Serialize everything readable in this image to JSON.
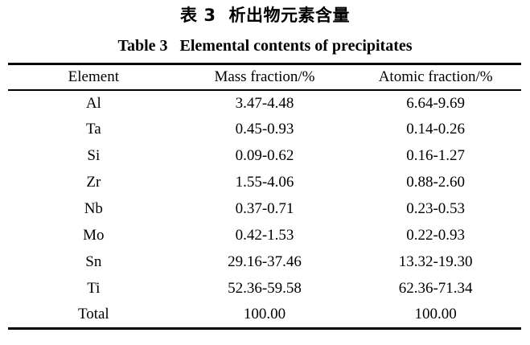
{
  "titles": {
    "chinese_label": "表 3",
    "chinese_text": "析出物元素含量",
    "english_label": "Table 3",
    "english_text": "Elemental contents of precipitates"
  },
  "table": {
    "headers": [
      "Element",
      "Mass fraction/%",
      "Atomic fraction/%"
    ],
    "rows": [
      {
        "element": "Al",
        "mass": "3.47-4.48",
        "atomic": "6.64-9.69"
      },
      {
        "element": "Ta",
        "mass": "0.45-0.93",
        "atomic": "0.14-0.26"
      },
      {
        "element": "Si",
        "mass": "0.09-0.62",
        "atomic": "0.16-1.27"
      },
      {
        "element": "Zr",
        "mass": "1.55-4.06",
        "atomic": "0.88-2.60"
      },
      {
        "element": "Nb",
        "mass": "0.37-0.71",
        "atomic": "0.23-0.53"
      },
      {
        "element": "Mo",
        "mass": "0.42-1.53",
        "atomic": "0.22-0.93"
      },
      {
        "element": "Sn",
        "mass": "29.16-37.46",
        "atomic": "13.32-19.30"
      },
      {
        "element": "Ti",
        "mass": "52.36-59.58",
        "atomic": "62.36-71.34"
      },
      {
        "element": "Total",
        "mass": "100.00",
        "atomic": "100.00"
      }
    ]
  },
  "colors": {
    "text": "#000000",
    "background": "#ffffff",
    "rule": "#000000"
  }
}
